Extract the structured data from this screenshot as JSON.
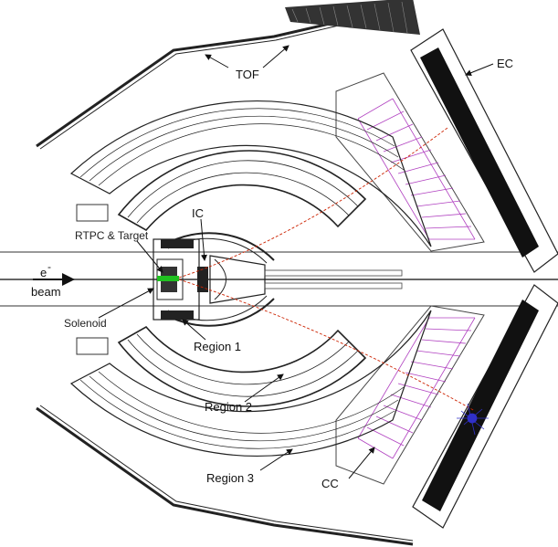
{
  "labels": {
    "tof": "TOF",
    "ec": "EC",
    "ic": "IC",
    "rtpc_target": "RTPC & Target",
    "beam_e": "e",
    "beam_e_sup": "-",
    "beam": "beam",
    "solenoid": "Solenoid",
    "region1": "Region 1",
    "region2": "Region 2",
    "region3": "Region 3",
    "cc": "CC"
  },
  "colors": {
    "track": "#cc2200",
    "cc_mirrors": "#b040c0",
    "cc_mirror_inner": "#6060c0",
    "target": "#20c020",
    "shower": "#3030c8"
  }
}
